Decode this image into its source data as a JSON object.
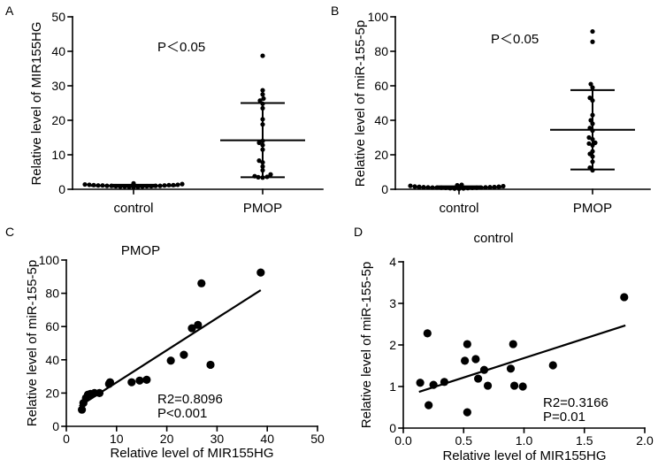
{
  "colors": {
    "ink": "#000000",
    "background": "#ffffff"
  },
  "chart_data": [
    {
      "label": "A",
      "type": "scatter",
      "annotation": "P＜0.05",
      "ylabel": "Relative level of MIR155HG",
      "categories": [
        "control",
        "PMOP"
      ],
      "ylim": [
        0,
        50
      ],
      "yticks": [
        0,
        10,
        20,
        30,
        40,
        50
      ],
      "groups": [
        {
          "values": [
            0.6,
            0.7,
            0.7,
            0.8,
            0.8,
            0.8,
            0.9,
            0.9,
            0.9,
            1.0,
            1.0,
            1.0,
            1.0,
            1.1,
            1.1,
            1.1,
            1.2,
            1.2,
            1.2,
            1.3,
            1.3,
            1.4,
            1.5,
            1.7
          ],
          "mean": 1.0,
          "sd_upper": 1.3,
          "sd_lower": 0.7
        },
        {
          "values": [
            38.7,
            28.7,
            27.5,
            26.3,
            25.7,
            24.8,
            23.5,
            20.3,
            18.8,
            14.0,
            13.5,
            12.8,
            11.5,
            8.3,
            7.8,
            6.6,
            5.5,
            4.3,
            3.8,
            3.6,
            3.5,
            3.4
          ],
          "mean": 14.2,
          "sd_upper": 25.0,
          "sd_lower": 3.5
        }
      ]
    },
    {
      "label": "B",
      "type": "scatter",
      "annotation": "P＜0.05",
      "ylabel": "Relative level of miR-155-5p",
      "categories": [
        "control",
        "PMOP"
      ],
      "ylim": [
        0,
        100
      ],
      "yticks": [
        0,
        20,
        40,
        60,
        80,
        100
      ],
      "groups": [
        {
          "values": [
            0.3,
            0.4,
            0.5,
            0.6,
            0.7,
            0.8,
            0.8,
            0.9,
            0.9,
            1.0,
            1.0,
            1.0,
            1.1,
            1.1,
            1.2,
            1.2,
            1.3,
            1.4,
            1.5,
            1.6,
            1.8,
            2.0,
            2.3,
            2.6
          ],
          "mean": 1.1,
          "sd_upper": 1.7,
          "sd_lower": 0.5
        },
        {
          "values": [
            91.5,
            85.5,
            61.0,
            59.0,
            53.0,
            51.5,
            43.0,
            40.0,
            38.0,
            35.5,
            34.0,
            30.0,
            29.0,
            27.0,
            26.5,
            25.5,
            22.0,
            20.5,
            19.0,
            16.0,
            12.5,
            11.0
          ],
          "mean": 34.5,
          "sd_upper": 57.5,
          "sd_lower": 11.5
        }
      ]
    },
    {
      "label": "C",
      "type": "scatter",
      "title": "PMOP",
      "xlabel": "Relative level of MIR155HG",
      "ylabel": "Relative level of miR-155-5p",
      "xlim": [
        0,
        50
      ],
      "xticks": [
        0,
        10,
        20,
        30,
        40,
        50
      ],
      "ylim": [
        0,
        100
      ],
      "yticks": [
        0,
        20,
        40,
        60,
        80,
        100
      ],
      "x": [
        3.1,
        3.4,
        3.9,
        4.3,
        4.8,
        5.6,
        6.6,
        8.5,
        8.7,
        13.0,
        14.6,
        16.0,
        20.8,
        23.4,
        25.0,
        26.2,
        26.9,
        28.7,
        38.7
      ],
      "y": [
        10.0,
        14.0,
        17.0,
        19.0,
        19.5,
        20.0,
        20.0,
        25.5,
        26.5,
        26.5,
        27.5,
        28.0,
        39.5,
        43.0,
        59.0,
        61.0,
        86.0,
        37.0,
        92.5
      ],
      "fit": {
        "slope": 1.933,
        "intercept": 7.1,
        "x_range": [
          2.6,
          38.7
        ]
      },
      "stats": {
        "r2": "R2=0.8096",
        "p": "P<0.001"
      }
    },
    {
      "label": "D",
      "type": "scatter",
      "title": "control",
      "xlabel": "Relative level of MIR155HG",
      "ylabel": "Relative level of miR-155-5p",
      "xlim": [
        0,
        2
      ],
      "xticks": [
        0,
        0.5,
        1,
        1.5,
        2
      ],
      "xtick_labels": [
        "0.0",
        "0.5",
        "1.0",
        "1.5",
        "2.0"
      ],
      "ylim": [
        0,
        4
      ],
      "yticks": [
        0,
        1,
        2,
        3,
        4
      ],
      "x": [
        0.14,
        0.2,
        0.21,
        0.25,
        0.34,
        0.51,
        0.53,
        0.53,
        0.6,
        0.62,
        0.67,
        0.7,
        0.89,
        0.91,
        0.92,
        0.99,
        1.24,
        1.83
      ],
      "y": [
        1.09,
        2.28,
        0.55,
        1.04,
        1.11,
        1.62,
        2.02,
        0.38,
        1.66,
        1.19,
        1.4,
        1.02,
        1.43,
        2.02,
        1.02,
        1.0,
        1.51,
        3.15
      ],
      "fit": {
        "slope": 0.935,
        "intercept": 0.749,
        "x_range": [
          0.13,
          1.84
        ]
      },
      "stats": {
        "r2": "R2=0.3166",
        "p": "P=0.01"
      }
    }
  ]
}
